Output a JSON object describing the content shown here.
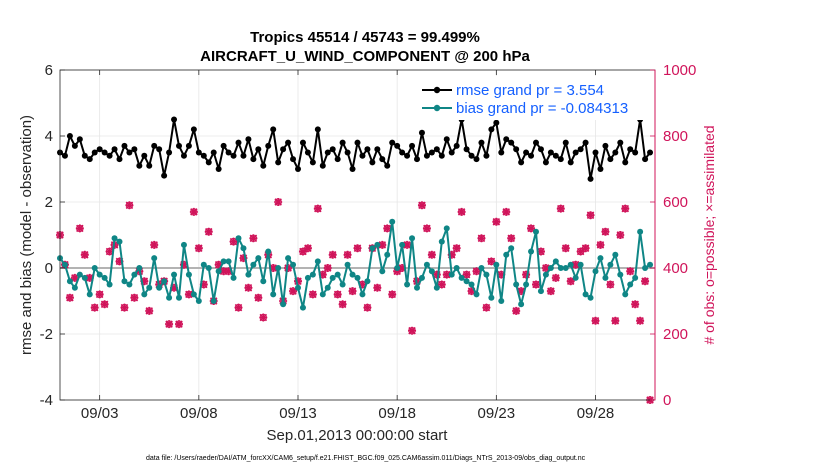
{
  "chart_data": {
    "type": "line",
    "title": "Tropics 45514 / 45743 = 99.499%",
    "subtitle": "AIRCRAFT_U_WIND_COMPONENT @ 200 hPa",
    "xlabel": "Sep.01,2013 00:00:00 start",
    "ylabel": "rmse and bias (model - observation)",
    "ylabel_right": "# of obs: o=possible; ×=assimilated",
    "footnote": "data file: /Users/raeder/DAI/ATM_forcXX/CAM6_setup/f.e21.FHIST_BGC.f09_025.CAM6assim.011/Diags_NTrS_2013-09/obs_diag_output.nc",
    "xlim": [
      1.0,
      31.0
    ],
    "ylim": [
      -4,
      6
    ],
    "ylim_right": [
      0,
      1000
    ],
    "xticks": [
      3,
      8,
      13,
      18,
      23,
      28
    ],
    "xtick_labels": [
      "09/03",
      "09/08",
      "09/13",
      "09/18",
      "09/23",
      "09/28"
    ],
    "yticks": [
      -4,
      -2,
      0,
      2,
      4,
      6
    ],
    "ytick_labels": [
      "-4",
      "-2",
      "0",
      "2",
      "4",
      "6"
    ],
    "yticks_right": [
      0,
      200,
      400,
      600,
      800,
      1000
    ],
    "ytick_right_labels": [
      "0",
      "200",
      "400",
      "600",
      "800",
      "1000"
    ],
    "grid": true,
    "legend_position": "top-right",
    "colors": {
      "rmse": "#000000",
      "bias": "#0f8686",
      "obs": "#d0145a",
      "zero_line": "#b3b3b3",
      "legend_text": "#1560ff"
    },
    "x": [
      1.0,
      1.25,
      1.5,
      1.75,
      2.0,
      2.25,
      2.5,
      2.75,
      3.0,
      3.25,
      3.5,
      3.75,
      4.0,
      4.25,
      4.5,
      4.75,
      5.0,
      5.25,
      5.5,
      5.75,
      6.0,
      6.25,
      6.5,
      6.75,
      7.0,
      7.25,
      7.5,
      7.75,
      8.0,
      8.25,
      8.5,
      8.75,
      9.0,
      9.25,
      9.5,
      9.75,
      10.0,
      10.25,
      10.5,
      10.75,
      11.0,
      11.25,
      11.5,
      11.75,
      12.0,
      12.25,
      12.5,
      12.75,
      13.0,
      13.25,
      13.5,
      13.75,
      14.0,
      14.25,
      14.5,
      14.75,
      15.0,
      15.25,
      15.5,
      15.75,
      16.0,
      16.25,
      16.5,
      16.75,
      17.0,
      17.25,
      17.5,
      17.75,
      18.0,
      18.25,
      18.5,
      18.75,
      19.0,
      19.25,
      19.5,
      19.75,
      20.0,
      20.25,
      20.5,
      20.75,
      21.0,
      21.25,
      21.5,
      21.75,
      22.0,
      22.25,
      22.5,
      22.75,
      23.0,
      23.25,
      23.5,
      23.75,
      24.0,
      24.25,
      24.5,
      24.75,
      25.0,
      25.25,
      25.5,
      25.75,
      26.0,
      26.25,
      26.5,
      26.75,
      27.0,
      27.25,
      27.5,
      27.75,
      28.0,
      28.25,
      28.5,
      28.75,
      29.0,
      29.25,
      29.5,
      29.75,
      30.0,
      30.25,
      30.5,
      30.75
    ],
    "series": [
      {
        "name": "rmse grand pr = 3.554",
        "marker": "dot",
        "values": [
          3.5,
          3.4,
          4.0,
          3.7,
          3.9,
          3.4,
          3.3,
          3.5,
          3.6,
          3.5,
          3.4,
          3.6,
          3.3,
          3.7,
          3.5,
          3.6,
          3.1,
          3.4,
          3.1,
          3.7,
          3.6,
          2.8,
          3.5,
          4.5,
          3.7,
          3.4,
          3.7,
          4.2,
          3.5,
          3.4,
          3.2,
          3.5,
          3.0,
          3.7,
          3.5,
          3.4,
          3.8,
          3.4,
          3.9,
          3.3,
          3.6,
          3.1,
          3.7,
          4.2,
          3.2,
          3.6,
          3.8,
          3.3,
          3.0,
          3.8,
          3.5,
          3.2,
          4.2,
          3.1,
          3.5,
          3.6,
          3.3,
          3.8,
          3.5,
          3.0,
          3.8,
          3.4,
          3.6,
          3.2,
          3.6,
          3.3,
          3.1,
          3.8,
          3.7,
          3.5,
          3.4,
          3.7,
          3.3,
          4.1,
          3.4,
          3.5,
          3.6,
          3.4,
          3.9,
          3.5,
          3.7,
          4.5,
          3.6,
          3.4,
          3.3,
          3.8,
          3.4,
          4.2,
          4.4,
          3.5,
          3.9,
          3.8,
          3.6,
          3.2,
          3.5,
          3.4,
          3.8,
          3.6,
          3.2,
          3.5,
          3.4,
          3.3,
          3.8,
          3.2,
          3.5,
          3.6,
          3.8,
          2.7,
          3.5,
          3.0,
          3.7,
          3.3,
          3.5,
          3.8,
          3.2,
          3.6,
          3.5,
          4.5,
          3.3,
          3.5
        ]
      },
      {
        "name": "bias grand pr = -0.084313",
        "marker": "dot",
        "values": [
          0.3,
          0.1,
          -0.4,
          -0.6,
          -0.2,
          -0.3,
          -0.8,
          0.0,
          -0.2,
          -0.3,
          -0.5,
          0.9,
          0.8,
          -0.4,
          -0.5,
          -0.2,
          0.0,
          -0.8,
          -0.6,
          0.3,
          -0.6,
          -0.4,
          -0.9,
          -0.2,
          -0.9,
          0.7,
          -0.2,
          -0.8,
          -1.0,
          0.1,
          0.0,
          -1.0,
          -0.1,
          0.2,
          0.2,
          -0.3,
          0.9,
          0.6,
          -0.2,
          0.1,
          0.3,
          -0.4,
          0.5,
          -0.8,
          0.0,
          -1.1,
          0.3,
          0.1,
          -0.6,
          -1.2,
          -0.3,
          -0.2,
          0.2,
          -0.8,
          -0.6,
          -0.3,
          -0.2,
          -0.5,
          0.1,
          -0.2,
          -0.3,
          -0.8,
          -0.4,
          0.6,
          0.7,
          -0.1,
          0.4,
          1.4,
          0.0,
          0.7,
          -0.5,
          0.9,
          -0.6,
          -0.3,
          0.1,
          -0.1,
          -0.6,
          0.8,
          1.2,
          -0.2,
          0.0,
          -0.3,
          -0.4,
          -0.5,
          -0.8,
          0.0,
          -0.2,
          -0.9,
          0.1,
          -1.0,
          0.4,
          0.6,
          -0.5,
          -1.1,
          -0.5,
          0.5,
          1.1,
          -0.7,
          -0.2,
          0.0,
          0.2,
          0.0,
          0.0,
          0.1,
          -0.3,
          0.1,
          -0.8,
          -0.9,
          -0.1,
          0.3,
          -0.3,
          0.1,
          0.4,
          -0.2,
          -0.8,
          -0.5,
          -0.3,
          1.1,
          0.0,
          0.1
        ]
      },
      {
        "name": "# of obs (possible / assimilated)",
        "axis": "right",
        "marker": "o+x",
        "values": [
          500,
          410,
          310,
          370,
          520,
          440,
          370,
          280,
          320,
          290,
          450,
          470,
          420,
          280,
          590,
          310,
          390,
          360,
          270,
          470,
          350,
          360,
          230,
          340,
          230,
          410,
          320,
          570,
          460,
          350,
          510,
          300,
          410,
          390,
          390,
          480,
          280,
          430,
          340,
          490,
          310,
          250,
          440,
          400,
          600,
          300,
          400,
          330,
          360,
          450,
          460,
          320,
          580,
          380,
          400,
          440,
          320,
          290,
          440,
          330,
          460,
          350,
          280,
          460,
          340,
          470,
          520,
          320,
          390,
          400,
          470,
          210,
          360,
          590,
          520,
          440,
          380,
          350,
          380,
          440,
          460,
          570,
          380,
          330,
          390,
          490,
          280,
          420,
          540,
          380,
          570,
          490,
          270,
          330,
          380,
          520,
          350,
          450,
          400,
          330,
          370,
          580,
          460,
          360,
          410,
          450,
          460,
          560,
          240,
          470,
          510,
          350,
          240,
          500,
          580,
          390,
          290,
          240,
          360,
          0
        ]
      }
    ]
  }
}
